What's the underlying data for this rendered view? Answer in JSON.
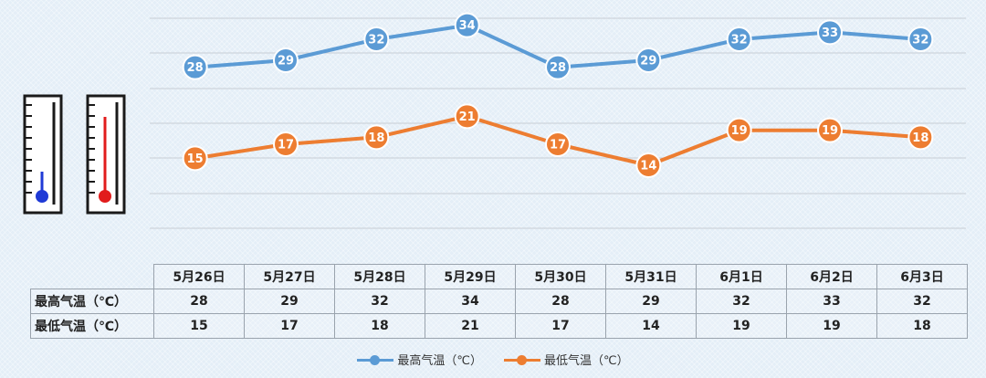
{
  "chart_data": {
    "type": "line",
    "categories": [
      "5月26日",
      "5月27日",
      "5月28日",
      "5月29日",
      "5月30日",
      "5月31日",
      "6月1日",
      "6月2日",
      "6月3日"
    ],
    "series": [
      {
        "name": "最高气温（℃）",
        "color": "#5b9bd5",
        "values": [
          28,
          29,
          32,
          34,
          28,
          29,
          32,
          33,
          32
        ]
      },
      {
        "name": "最低气温（℃）",
        "color": "#ed7d31",
        "values": [
          15,
          17,
          18,
          21,
          17,
          14,
          19,
          19,
          18
        ]
      }
    ],
    "ylim": [
      5,
      35
    ],
    "grid": true,
    "data_labels": true,
    "legend_position": "bottom",
    "data_table": true
  },
  "thermometers": [
    {
      "name": "low-thermometer",
      "color": "#1f3ad6",
      "icon": "thermometer-icon"
    },
    {
      "name": "high-thermometer",
      "color": "#e11c1c",
      "icon": "thermometer-icon"
    }
  ]
}
